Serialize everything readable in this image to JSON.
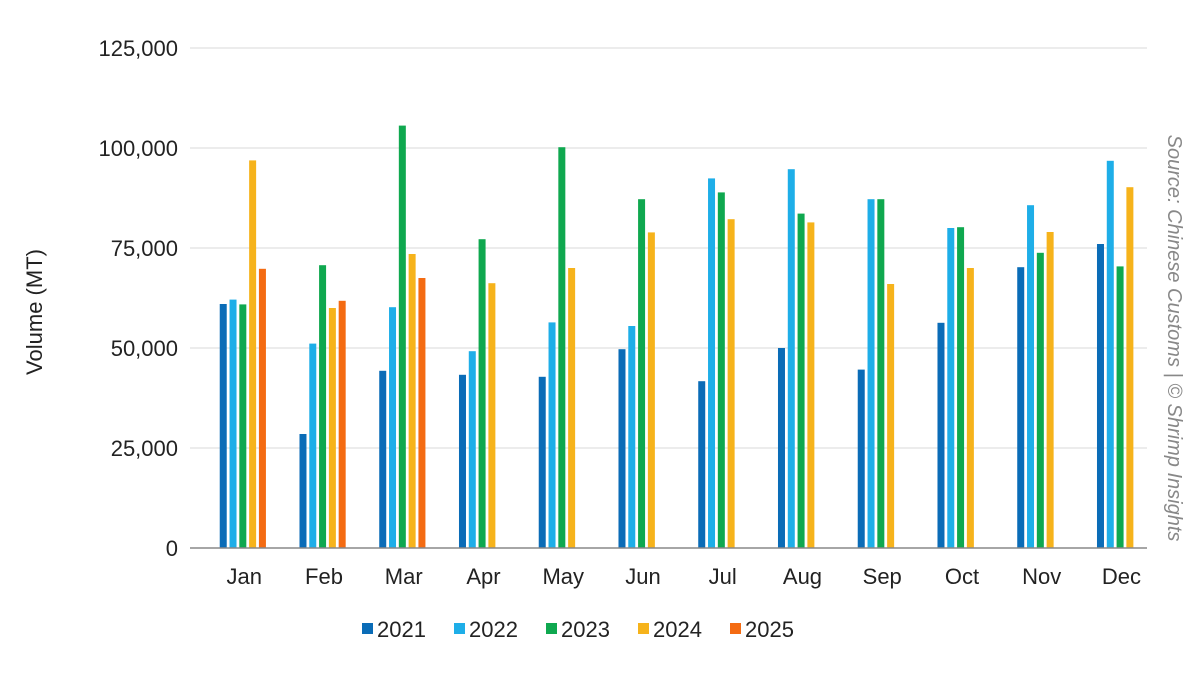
{
  "chart_data": {
    "type": "bar",
    "categories": [
      "Jan",
      "Feb",
      "Mar",
      "Apr",
      "May",
      "Jun",
      "Jul",
      "Aug",
      "Sep",
      "Oct",
      "Nov",
      "Dec"
    ],
    "series": [
      {
        "name": "2021",
        "color": "#0a6cb7",
        "values": [
          61000,
          28500,
          44300,
          43300,
          42800,
          49700,
          41700,
          50000,
          44600,
          56300,
          70200,
          76000
        ]
      },
      {
        "name": "2022",
        "color": "#1eaee8",
        "values": [
          62100,
          51100,
          60200,
          49200,
          56400,
          55500,
          92400,
          94700,
          87200,
          80000,
          85700,
          96800
        ]
      },
      {
        "name": "2023",
        "color": "#0fa84f",
        "values": [
          60900,
          70700,
          105600,
          77200,
          100200,
          87200,
          88900,
          83600,
          87200,
          80200,
          73800,
          70400
        ]
      },
      {
        "name": "2024",
        "color": "#f6b31b",
        "values": [
          96900,
          60000,
          73500,
          66200,
          70000,
          78900,
          82200,
          81400,
          66000,
          70000,
          79000,
          90200
        ]
      },
      {
        "name": "2025",
        "color": "#f46b12",
        "values": [
          69800,
          61800,
          67500,
          null,
          null,
          null,
          null,
          null,
          null,
          null,
          null,
          null
        ]
      }
    ],
    "ylabel": "Volume (MT)",
    "ylim": [
      0,
      125000
    ],
    "yticks": [
      "0",
      "25,000",
      "50,000",
      "75,000",
      "100,000",
      "125,000"
    ],
    "grid": true,
    "legend": "bottom",
    "source": "Source: Chinese Customs | © Shrimp Insights"
  }
}
